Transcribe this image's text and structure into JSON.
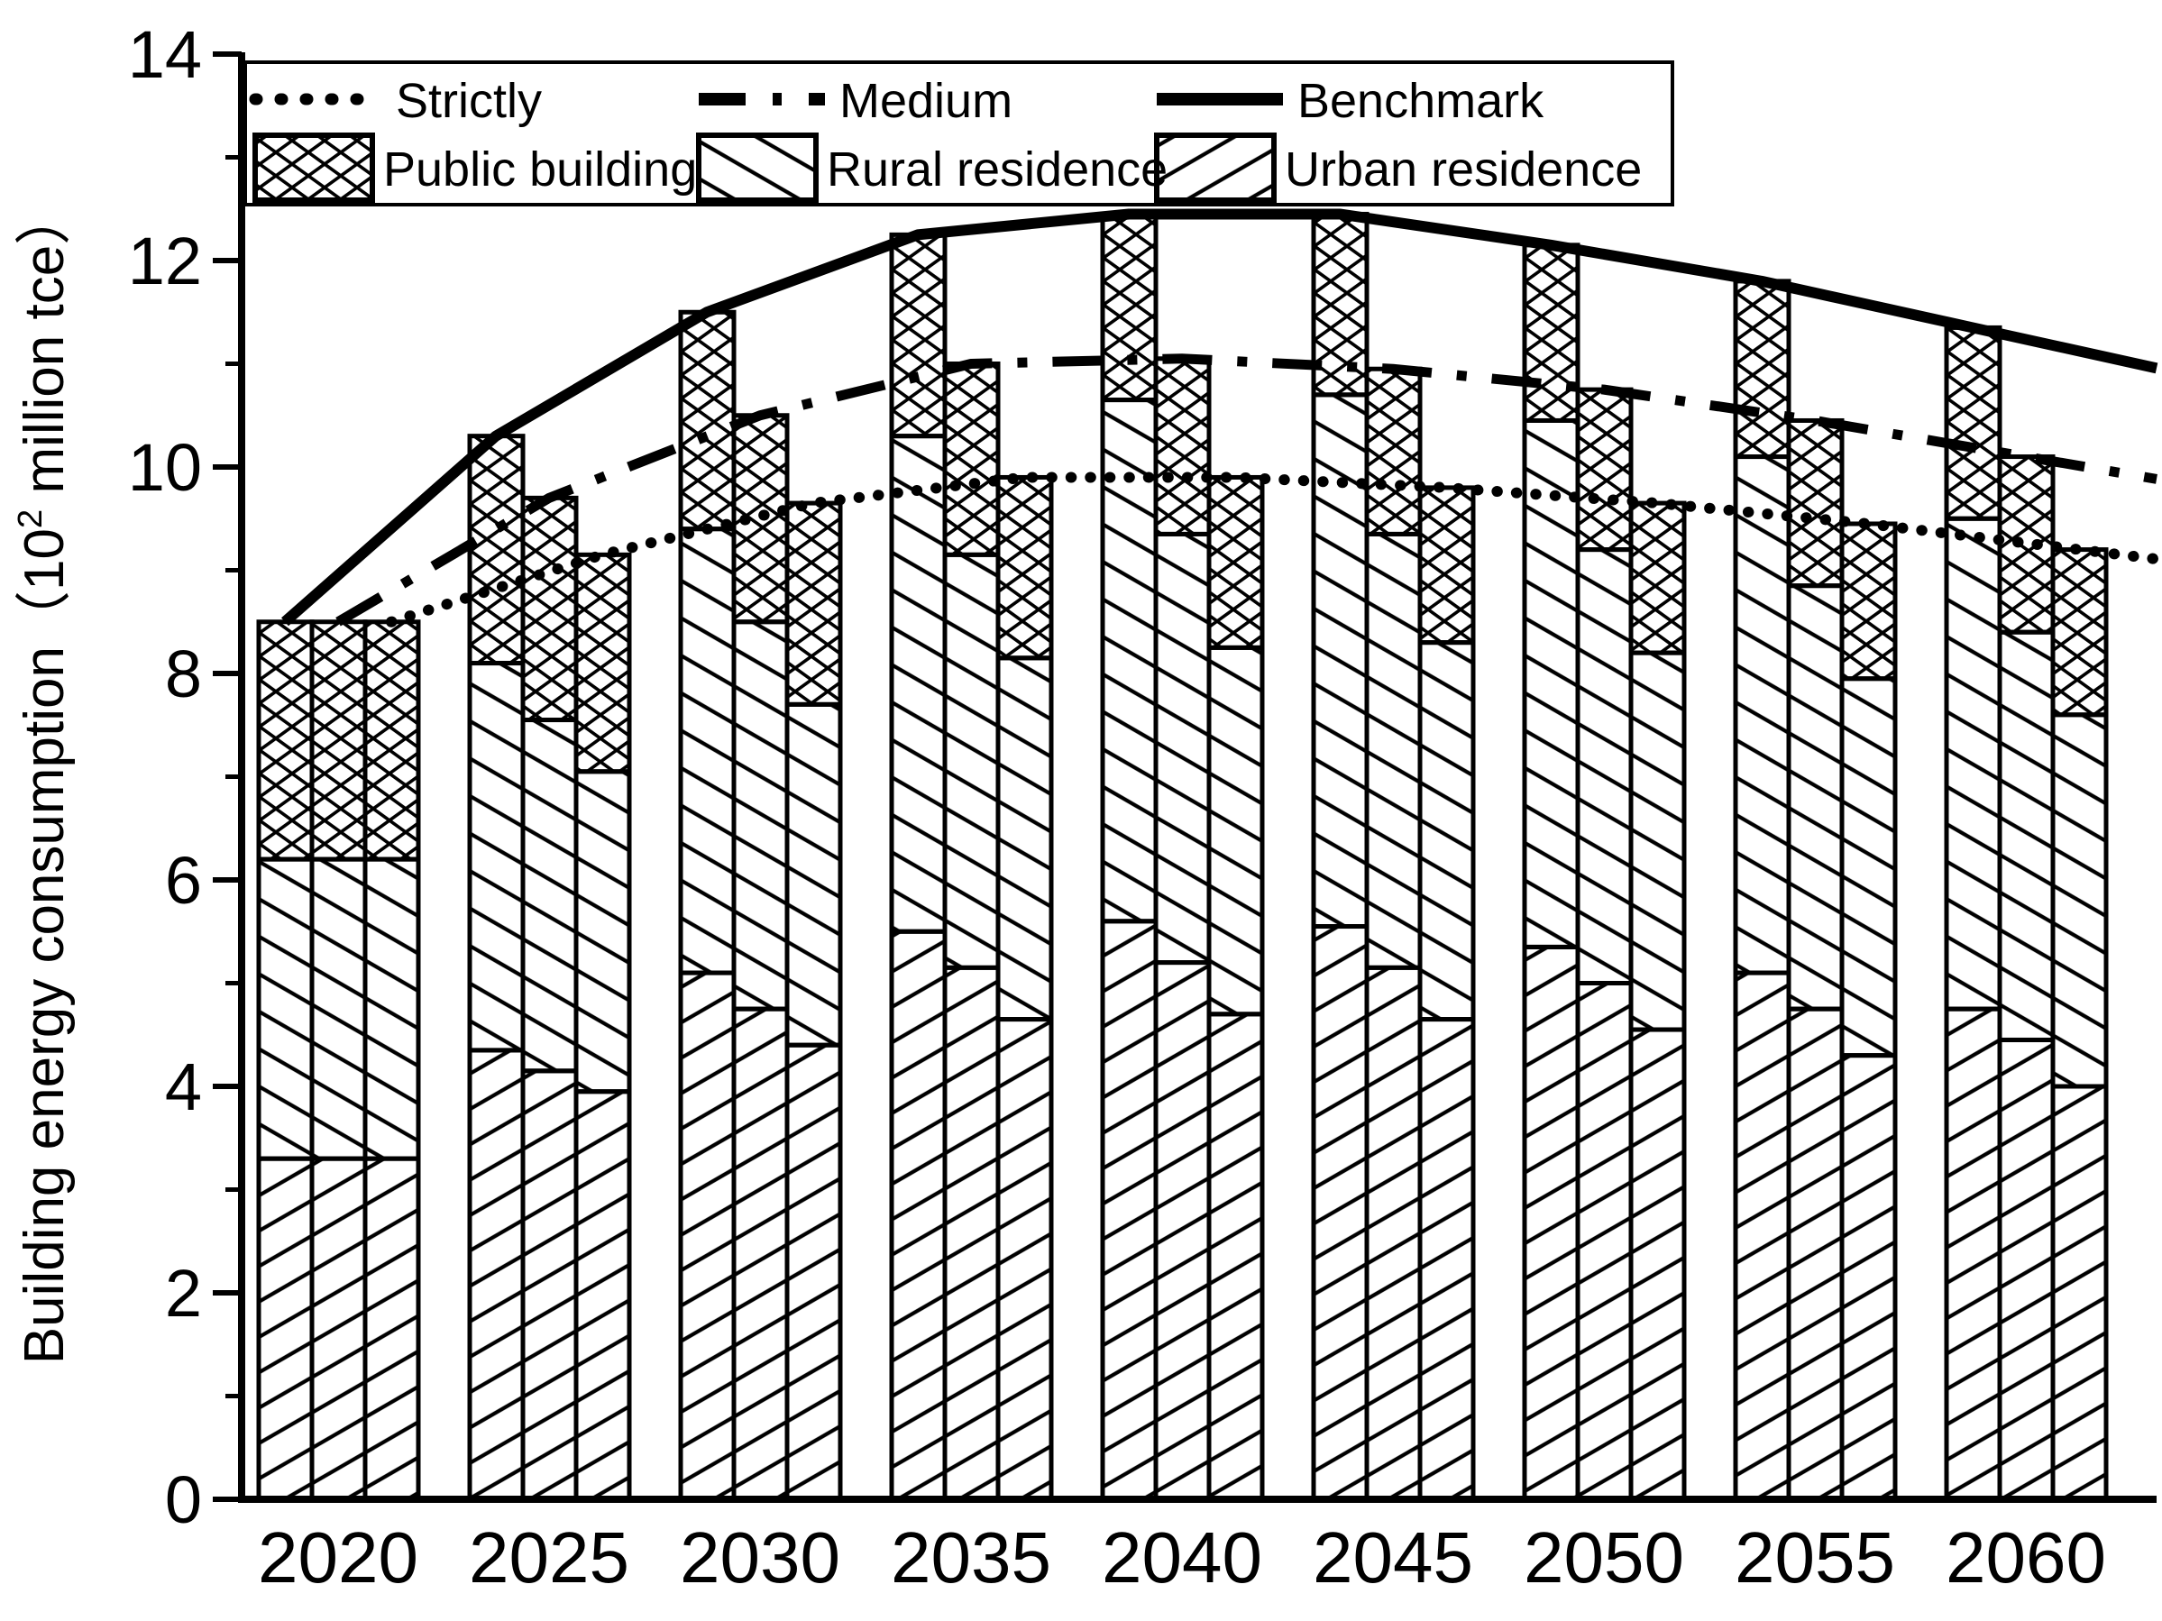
{
  "chart_data": {
    "type": "bar",
    "subtype": "grouped-stacked-bars-with-lines",
    "title": "",
    "xlabel": "",
    "ylabel": {
      "pre": "Building energy consumption（10",
      "sup": "2",
      "post": " million tce）"
    },
    "ylim": [
      0,
      14
    ],
    "y_major_ticks": [
      0,
      2,
      4,
      6,
      8,
      10,
      12,
      14
    ],
    "y_minor_ticks": [
      1,
      3,
      5,
      7,
      9,
      11,
      13
    ],
    "grid": "off",
    "legend_position": "top-inside-box",
    "categories": [
      "2020",
      "2025",
      "2030",
      "2035",
      "2040",
      "2045",
      "2050",
      "2055",
      "2060"
    ],
    "bar_scenario_order": [
      "Benchmark",
      "Medium",
      "Strictly"
    ],
    "stack_order_bottom_to_top": [
      "Urban residence",
      "Rural residence",
      "Public building"
    ],
    "stacked_bars": {
      "Benchmark": {
        "urban": [
          3.3,
          4.35,
          5.1,
          5.5,
          5.6,
          5.55,
          5.35,
          5.1,
          4.75
        ],
        "rural": [
          2.9,
          3.75,
          4.3,
          4.8,
          5.05,
          5.15,
          5.1,
          5.0,
          4.75
        ],
        "public": [
          2.3,
          2.2,
          2.1,
          1.95,
          1.8,
          1.75,
          1.7,
          1.7,
          1.85
        ],
        "totals": [
          8.5,
          10.3,
          11.5,
          12.25,
          12.45,
          12.45,
          12.15,
          11.8,
          11.35
        ]
      },
      "Medium": {
        "urban": [
          3.3,
          4.15,
          4.75,
          5.15,
          5.2,
          5.15,
          5.0,
          4.75,
          4.45
        ],
        "rural": [
          2.9,
          3.4,
          3.75,
          4.0,
          4.15,
          4.2,
          4.2,
          4.1,
          3.95
        ],
        "public": [
          2.3,
          2.15,
          2.0,
          1.85,
          1.7,
          1.6,
          1.55,
          1.6,
          1.7
        ],
        "totals": [
          8.5,
          9.7,
          10.5,
          11.0,
          11.05,
          10.95,
          10.75,
          10.45,
          10.1
        ]
      },
      "Strictly": {
        "urban": [
          3.3,
          3.95,
          4.4,
          4.65,
          4.7,
          4.65,
          4.55,
          4.3,
          4.0
        ],
        "rural": [
          2.9,
          3.1,
          3.3,
          3.5,
          3.55,
          3.65,
          3.65,
          3.65,
          3.6
        ],
        "public": [
          2.3,
          2.1,
          1.95,
          1.75,
          1.65,
          1.5,
          1.45,
          1.5,
          1.6
        ],
        "totals": [
          8.5,
          9.15,
          9.65,
          9.9,
          9.9,
          9.8,
          9.65,
          9.45,
          9.2
        ]
      }
    },
    "lines": [
      {
        "name": "Strictly",
        "style": "dotted",
        "values": [
          8.5,
          9.15,
          9.65,
          9.9,
          9.9,
          9.8,
          9.65,
          9.45,
          9.2
        ]
      },
      {
        "name": "Medium",
        "style": "dash-dash-dot",
        "values": [
          8.5,
          9.7,
          10.5,
          11.0,
          11.05,
          10.95,
          10.75,
          10.45,
          10.1
        ]
      },
      {
        "name": "Benchmark",
        "style": "solid",
        "values": [
          8.5,
          10.3,
          11.5,
          12.25,
          12.45,
          12.45,
          12.15,
          11.8,
          11.35
        ]
      }
    ],
    "legend": {
      "line_entries": [
        {
          "label": "Strictly",
          "swatch": "dotted-line-icon"
        },
        {
          "label": "Medium",
          "swatch": "dash-dot-line-icon"
        },
        {
          "label": "Benchmark",
          "swatch": "solid-line-icon"
        }
      ],
      "patch_entries": [
        {
          "label": "Public building",
          "swatch": "crosshatch-swatch-icon"
        },
        {
          "label": "Rural residence",
          "swatch": "backslash-hatch-swatch-icon"
        },
        {
          "label": "Urban residence",
          "swatch": "forwardslash-hatch-swatch-icon"
        }
      ]
    },
    "colors": {
      "foreground": "#000000",
      "background": "#ffffff"
    }
  }
}
